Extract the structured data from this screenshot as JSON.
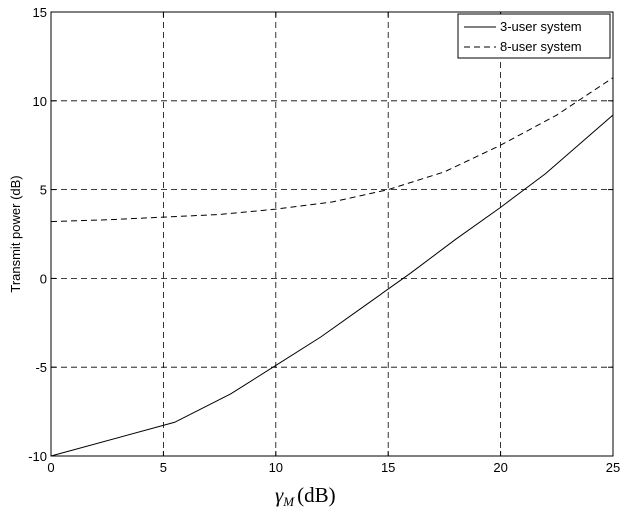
{
  "chart_data": {
    "type": "line",
    "title": "",
    "xlabel_symbol": "γ",
    "xlabel_subscript": "M",
    "xlabel_unit": "(dB)",
    "ylabel": "Transmit power (dB)",
    "xlim": [
      0,
      25
    ],
    "ylim": [
      -10,
      15
    ],
    "x_ticks": [
      0,
      5,
      10,
      15,
      20,
      25
    ],
    "y_ticks": [
      -10,
      -5,
      0,
      5,
      10,
      15
    ],
    "x_tick_labels": [
      "0",
      "5",
      "10",
      "15",
      "20",
      "25"
    ],
    "y_tick_labels": [
      "-10",
      "-5",
      "0",
      "5",
      "10",
      "15"
    ],
    "grid": true,
    "legend_position": "top-right",
    "series": [
      {
        "name": "3-user system",
        "style": "solid",
        "color": "#000000",
        "x": [
          0,
          5.5,
          8,
          10,
          12,
          14,
          16,
          18,
          20,
          22,
          25
        ],
        "y": [
          -10,
          -8.1,
          -6.5,
          -4.9,
          -3.3,
          -1.5,
          0.3,
          2.2,
          4.0,
          5.9,
          9.2
        ]
      },
      {
        "name": "8-user system",
        "style": "dashed",
        "color": "#000000",
        "x": [
          0,
          2.5,
          5,
          7.5,
          10,
          12.5,
          15,
          17.5,
          20,
          22.5,
          25
        ],
        "y": [
          3.2,
          3.3,
          3.45,
          3.6,
          3.9,
          4.3,
          5.0,
          6.0,
          7.5,
          9.2,
          11.3
        ]
      }
    ]
  }
}
